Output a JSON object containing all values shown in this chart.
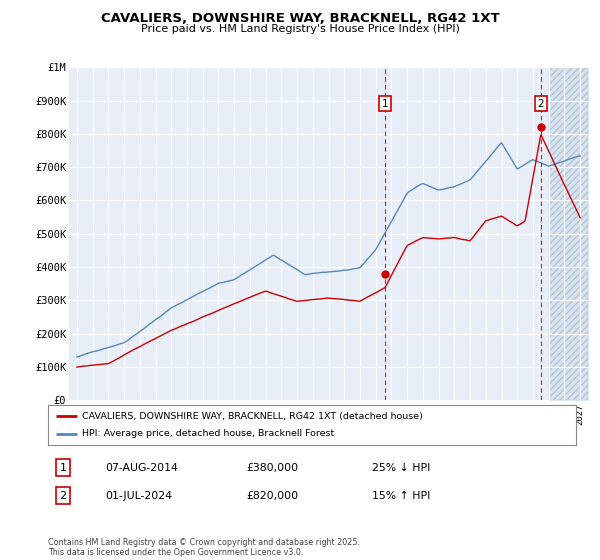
{
  "title": "CAVALIERS, DOWNSHIRE WAY, BRACKNELL, RG42 1XT",
  "subtitle": "Price paid vs. HM Land Registry's House Price Index (HPI)",
  "legend_label_red": "CAVALIERS, DOWNSHIRE WAY, BRACKNELL, RG42 1XT (detached house)",
  "legend_label_blue": "HPI: Average price, detached house, Bracknell Forest",
  "footnote": "Contains HM Land Registry data © Crown copyright and database right 2025.\nThis data is licensed under the Open Government Licence v3.0.",
  "marker1_date": "07-AUG-2014",
  "marker1_price": "£380,000",
  "marker1_hpi": "25% ↓ HPI",
  "marker2_date": "01-JUL-2024",
  "marker2_price": "£820,000",
  "marker2_hpi": "15% ↑ HPI",
  "ylim": [
    0,
    1000000
  ],
  "xlim_start": 1994.5,
  "xlim_end": 2027.5,
  "background_color": "#ffffff",
  "plot_bg_color": "#e8eef8",
  "future_bg_color": "#d8e4f0",
  "red_color": "#cc0000",
  "blue_color": "#5588bb",
  "grid_color": "#ffffff",
  "marker1_x": 2014.6,
  "marker2_x": 2024.5,
  "marker1_y": 380000,
  "marker2_y": 820000,
  "future_x": 2025.0
}
